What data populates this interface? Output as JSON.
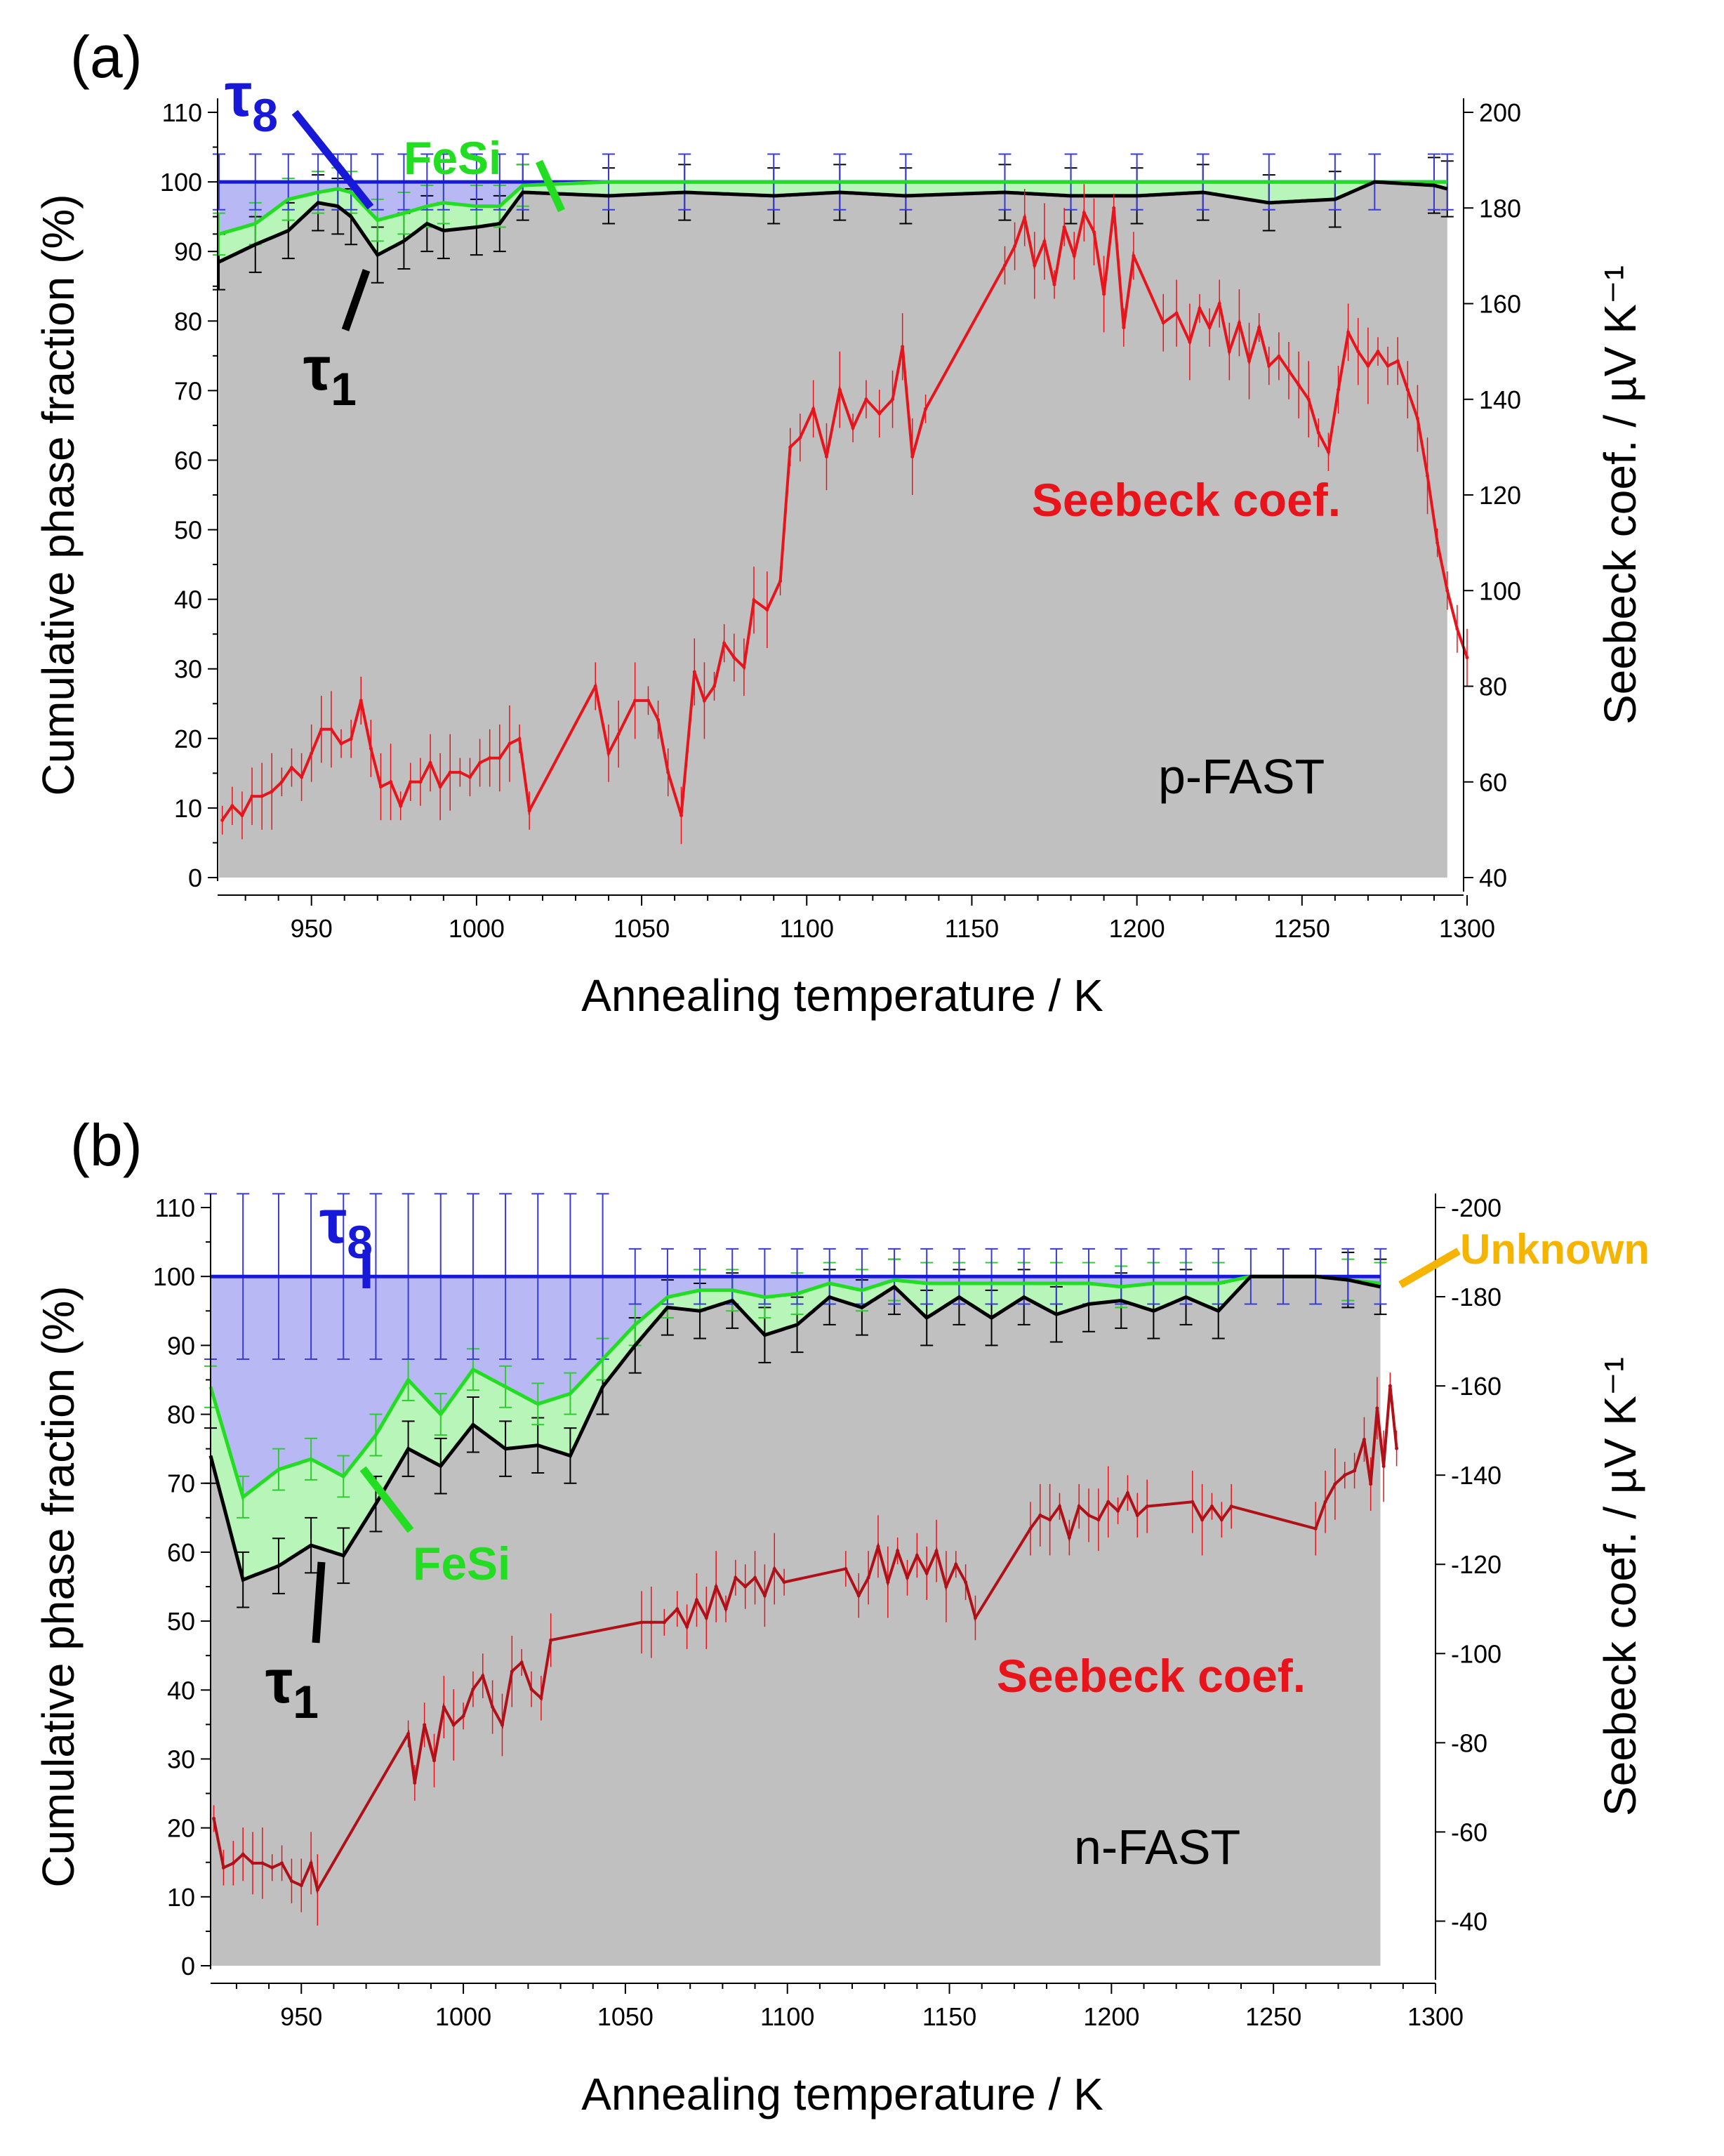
{
  "chart_data": [
    {
      "type": "area",
      "panel_label": "(a)",
      "sample_label": "p-FAST",
      "xlabel": "Annealing temperature / K",
      "ylabel_left": "Cumulative phase fraction (%)",
      "ylabel_right": "Seebeck coef. / µV K⁻¹",
      "xlim": [
        922,
        1300
      ],
      "ylim_left": [
        0,
        110
      ],
      "ylim_right": [
        40,
        200
      ],
      "x_ticks": [
        "950",
        "1000",
        "1050",
        "1100",
        "1150",
        "1200",
        "1250",
        "1300"
      ],
      "y_ticks_left": [
        "0",
        "10",
        "20",
        "30",
        "40",
        "50",
        "60",
        "70",
        "80",
        "90",
        "100",
        "110"
      ],
      "y_ticks_right": [
        "40",
        "60",
        "80",
        "100",
        "120",
        "140",
        "160",
        "180",
        "200"
      ],
      "phase_labels": {
        "tau8": "τ",
        "tau8_sub": "8",
        "tau1": "τ",
        "tau1_sub": "1",
        "fesi": "FeSi",
        "seebeck": "Seebeck coef."
      },
      "phase_series": {
        "x": [
          922,
          933,
          943,
          952,
          958,
          962,
          970,
          978,
          985,
          990,
          1000,
          1007,
          1014,
          1040,
          1063,
          1090,
          1110,
          1130,
          1160,
          1180,
          1200,
          1220,
          1240,
          1260,
          1272,
          1290,
          1294
        ],
        "tau1": [
          88.5,
          91,
          93,
          97,
          96.5,
          95,
          89.5,
          91.5,
          94,
          93,
          93.5,
          94,
          98.5,
          98,
          98.5,
          98,
          98.5,
          98,
          98.5,
          98,
          98,
          98.5,
          97,
          97.5,
          100,
          99.5,
          99
        ],
        "fesi": [
          92.5,
          94,
          97.5,
          98.5,
          99,
          98.5,
          94.5,
          95.5,
          96.5,
          97,
          96.5,
          96.5,
          99.5,
          100,
          100,
          100,
          100,
          100,
          100,
          100,
          100,
          100,
          100,
          100,
          100,
          100,
          100
        ],
        "tau8": [
          100,
          100,
          100,
          100,
          100,
          100,
          100,
          100,
          100,
          100,
          100,
          100,
          100,
          100,
          100,
          100,
          100,
          100,
          100,
          100,
          100,
          100,
          100,
          100,
          100,
          100,
          100
        ]
      },
      "seebeck_series": {
        "name": "Seebeck coef.",
        "x": [
          923,
          926,
          929,
          932,
          935,
          938,
          941,
          944,
          947,
          950,
          953,
          956,
          959,
          962,
          965,
          968,
          971,
          974,
          977,
          980,
          983,
          986,
          989,
          992,
          995,
          998,
          1001,
          1004,
          1007,
          1010,
          1013,
          1016,
          1036,
          1040,
          1043,
          1048,
          1052,
          1055,
          1058,
          1062,
          1066,
          1069,
          1072,
          1075,
          1078,
          1081,
          1084,
          1088,
          1092,
          1095,
          1098,
          1102,
          1106,
          1110,
          1114,
          1118,
          1122,
          1126,
          1129,
          1132,
          1136,
          1160,
          1163,
          1166,
          1169,
          1172,
          1175,
          1178,
          1181,
          1184,
          1187,
          1190,
          1193,
          1196,
          1199,
          1208,
          1212,
          1216,
          1219,
          1222,
          1225,
          1228,
          1231,
          1234,
          1237,
          1240,
          1243,
          1246,
          1249,
          1252,
          1255,
          1258,
          1261,
          1264,
          1267,
          1270,
          1273,
          1276,
          1279,
          1282,
          1285,
          1288,
          1291,
          1294,
          1297,
          1300
        ],
        "y": [
          52,
          55,
          53,
          57,
          57,
          58,
          60,
          63,
          61,
          66,
          71,
          71,
          68,
          69,
          77,
          67,
          59,
          60,
          55,
          60,
          60,
          64,
          59,
          62,
          62,
          61,
          64,
          65,
          65,
          68,
          69,
          54,
          80,
          66,
          70,
          77,
          77,
          73,
          62,
          53,
          83,
          77,
          80,
          89,
          86,
          84,
          98,
          96,
          102,
          130,
          132,
          138,
          128,
          142,
          134,
          140,
          137,
          140,
          151,
          128,
          138,
          168,
          172,
          178,
          168,
          173,
          164,
          176,
          170,
          179,
          175,
          162,
          180,
          155,
          170,
          156,
          158,
          152,
          159,
          155,
          160,
          150,
          156,
          148,
          155,
          147,
          149,
          146,
          143,
          140,
          133,
          129,
          142,
          154,
          150,
          147,
          150,
          147,
          148,
          142,
          136,
          124,
          110,
          100,
          92,
          86
        ]
      }
    },
    {
      "type": "area",
      "panel_label": "(b)",
      "sample_label": "n-FAST",
      "xlabel": "Annealing temperature / K",
      "ylabel_left": "Cumulative phase fraction (%)",
      "ylabel_right": "Seebeck coef. / µV K⁻¹",
      "xlim": [
        922,
        1300
      ],
      "ylim_left": [
        0,
        110
      ],
      "ylim_right": [
        -30,
        -200
      ],
      "x_ticks": [
        "950",
        "1000",
        "1050",
        "1100",
        "1150",
        "1200",
        "1250",
        "1300"
      ],
      "y_ticks_left": [
        "0",
        "10",
        "20",
        "30",
        "40",
        "50",
        "60",
        "70",
        "80",
        "90",
        "100",
        "110"
      ],
      "y_ticks_right": [
        "-40",
        "-60",
        "-80",
        "-100",
        "-120",
        "-140",
        "-160",
        "-180",
        "-200"
      ],
      "phase_labels": {
        "tau8": "τ",
        "tau8_sub": "8",
        "tau1": "τ",
        "tau1_sub": "1",
        "fesi": "FeSi",
        "seebeck": "Seebeck coef.",
        "unknown": "Unknown"
      },
      "phase_series": {
        "x": [
          922,
          932,
          943,
          953,
          963,
          973,
          983,
          993,
          1003,
          1013,
          1023,
          1033,
          1043,
          1053,
          1063,
          1073,
          1083,
          1093,
          1103,
          1113,
          1123,
          1133,
          1143,
          1153,
          1163,
          1173,
          1183,
          1193,
          1203,
          1213,
          1223,
          1233,
          1243,
          1253,
          1263,
          1273,
          1283
        ],
        "tau1": [
          74,
          56,
          58,
          61,
          59.5,
          67,
          75,
          72.5,
          78.5,
          75,
          75.5,
          74,
          84,
          90,
          95.5,
          95,
          96.5,
          91.5,
          93,
          97,
          95.5,
          98.5,
          94,
          97,
          94,
          97,
          94.5,
          96,
          96.5,
          95,
          97,
          95,
          100,
          100,
          100,
          99.5,
          98.5
        ],
        "fesi": [
          84,
          68,
          72,
          73.5,
          71,
          77,
          85,
          80,
          86.5,
          84,
          81.5,
          83,
          88,
          93,
          97,
          98,
          98,
          97,
          97.5,
          99,
          98,
          99.5,
          99,
          99,
          99,
          99,
          99,
          99,
          98.5,
          99,
          99,
          99,
          100,
          100,
          100,
          99.5,
          99
        ],
        "tau8": [
          100,
          100,
          100,
          100,
          100,
          100,
          100,
          100,
          100,
          100,
          100,
          100,
          100,
          100,
          100,
          100,
          100,
          100,
          100,
          100,
          100,
          100,
          100,
          100,
          100,
          100,
          100,
          100,
          100,
          100,
          100,
          100,
          100,
          100,
          100,
          100,
          100
        ]
      },
      "seebeck_series": {
        "name": "Seebeck coef.",
        "x": [
          923,
          926,
          929,
          932,
          935,
          938,
          941,
          944,
          947,
          950,
          953,
          955,
          983,
          985,
          988,
          991,
          994,
          997,
          1000,
          1003,
          1006,
          1009,
          1012,
          1015,
          1018,
          1021,
          1024,
          1027,
          1055,
          1058,
          1062,
          1066,
          1069,
          1072,
          1075,
          1078,
          1081,
          1084,
          1087,
          1090,
          1093,
          1096,
          1099,
          1118,
          1122,
          1125,
          1128,
          1131,
          1134,
          1137,
          1140,
          1143,
          1146,
          1149,
          1152,
          1155,
          1158,
          1175,
          1178,
          1181,
          1184,
          1187,
          1190,
          1193,
          1196,
          1199,
          1202,
          1205,
          1208,
          1211,
          1225,
          1228,
          1231,
          1234,
          1237,
          1263,
          1266,
          1269,
          1272,
          1275,
          1278,
          1280,
          1282,
          1284,
          1286,
          1288
        ],
        "y": [
          -63,
          -52,
          -53,
          -55,
          -53,
          -53,
          -52,
          -53,
          -49,
          -48,
          -53,
          -47,
          -82,
          -71,
          -84,
          -76,
          -88,
          -84,
          -86,
          -92,
          -95,
          -88,
          -84,
          -96,
          -98,
          -92,
          -90,
          -103,
          -107,
          -107,
          -107,
          -110,
          -106,
          -112,
          -108,
          -115,
          -110,
          -117,
          -115,
          -117,
          -113,
          -119,
          -116,
          -119,
          -113,
          -117,
          -124,
          -116,
          -123,
          -117,
          -122,
          -118,
          -123,
          -115,
          -120,
          -116,
          -108,
          -128,
          -131,
          -130,
          -133,
          -126,
          -133,
          -131,
          -130,
          -134,
          -132,
          -136,
          -131,
          -133,
          -134,
          -130,
          -133,
          -130,
          -133,
          -128,
          -134,
          -138,
          -140,
          -141,
          -148,
          -138,
          -155,
          -142,
          -160,
          -146
        ]
      }
    }
  ]
}
